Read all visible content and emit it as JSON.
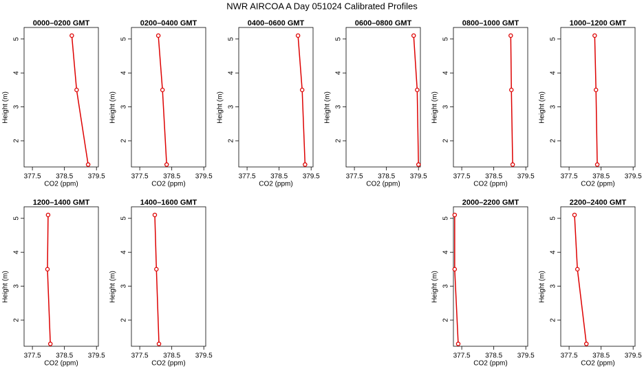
{
  "title": "NWR AIRCOA A  Day 051024  Calibrated Profiles",
  "chart_data": [
    {
      "type": "line",
      "title": "0000–0200 GMT",
      "x_label": "CO2 (ppm)",
      "y_label": "Height (m)",
      "xlim": [
        377.24,
        379.56
      ],
      "ylim": [
        1.23,
        5.34
      ],
      "xticks": [
        377.5,
        378.5,
        379.5
      ],
      "yticks": [
        2,
        3,
        4,
        5
      ],
      "series": [
        {
          "color": "#dd0000",
          "x": [
            379.24,
            378.88,
            378.73
          ],
          "values": [
            1.3,
            3.5,
            5.1
          ]
        }
      ]
    },
    {
      "type": "line",
      "title": "0200–0400 GMT",
      "x_label": "CO2 (ppm)",
      "y_label": "Height (m)",
      "xlim": [
        377.24,
        379.56
      ],
      "ylim": [
        1.23,
        5.34
      ],
      "xticks": [
        377.5,
        378.5,
        379.5
      ],
      "yticks": [
        2,
        3,
        4,
        5
      ],
      "series": [
        {
          "color": "#dd0000",
          "x": [
            378.34,
            378.21,
            378.08
          ],
          "values": [
            1.3,
            3.5,
            5.1
          ]
        }
      ]
    },
    {
      "type": "line",
      "title": "0400–0600 GMT",
      "x_label": "CO2 (ppm)",
      "y_label": "Height (m)",
      "xlim": [
        377.24,
        379.56
      ],
      "ylim": [
        1.23,
        5.34
      ],
      "xticks": [
        377.5,
        378.5,
        379.5
      ],
      "yticks": [
        2,
        3,
        4,
        5
      ],
      "series": [
        {
          "color": "#dd0000",
          "x": [
            379.31,
            379.22,
            379.09
          ],
          "values": [
            1.3,
            3.5,
            5.1
          ]
        }
      ]
    },
    {
      "type": "line",
      "title": "0600–0800 GMT",
      "x_label": "CO2 (ppm)",
      "y_label": "Height (m)",
      "xlim": [
        377.24,
        379.56
      ],
      "ylim": [
        1.23,
        5.34
      ],
      "xticks": [
        377.5,
        378.5,
        379.5
      ],
      "yticks": [
        2,
        3,
        4,
        5
      ],
      "series": [
        {
          "color": "#dd0000",
          "x": [
            379.5,
            379.46,
            379.35
          ],
          "values": [
            1.3,
            3.5,
            5.1
          ]
        }
      ]
    },
    {
      "type": "line",
      "title": "0800–1000 GMT",
      "x_label": "CO2 (ppm)",
      "y_label": "Height (m)",
      "xlim": [
        377.24,
        379.56
      ],
      "ylim": [
        1.23,
        5.34
      ],
      "xticks": [
        377.5,
        378.5,
        379.5
      ],
      "yticks": [
        2,
        3,
        4,
        5
      ],
      "series": [
        {
          "color": "#dd0000",
          "x": [
            379.09,
            379.05,
            379.03
          ],
          "values": [
            1.3,
            3.5,
            5.1
          ]
        }
      ]
    },
    {
      "type": "line",
      "title": "1000–1200 GMT",
      "x_label": "CO2 (ppm)",
      "y_label": "Height (m)",
      "xlim": [
        377.24,
        379.56
      ],
      "ylim": [
        1.23,
        5.34
      ],
      "xticks": [
        377.5,
        378.5,
        379.5
      ],
      "yticks": [
        2,
        3,
        4,
        5
      ],
      "series": [
        {
          "color": "#dd0000",
          "x": [
            378.38,
            378.34,
            378.3
          ],
          "values": [
            1.3,
            3.5,
            5.1
          ]
        }
      ]
    },
    {
      "type": "line",
      "title": "1200–1400 GMT",
      "x_label": "CO2 (ppm)",
      "y_label": "Height (m)",
      "xlim": [
        377.24,
        379.56
      ],
      "ylim": [
        1.23,
        5.34
      ],
      "xticks": [
        377.5,
        378.5,
        379.5
      ],
      "yticks": [
        2,
        3,
        4,
        5
      ],
      "series": [
        {
          "color": "#dd0000",
          "x": [
            378.06,
            377.97,
            377.99
          ],
          "values": [
            1.3,
            3.5,
            5.1
          ]
        }
      ]
    },
    {
      "type": "line",
      "title": "1400–1600 GMT",
      "x_label": "CO2 (ppm)",
      "y_label": "Height (m)",
      "xlim": [
        377.24,
        379.56
      ],
      "ylim": [
        1.23,
        5.34
      ],
      "xticks": [
        377.5,
        378.5,
        379.5
      ],
      "yticks": [
        2,
        3,
        4,
        5
      ],
      "series": [
        {
          "color": "#dd0000",
          "x": [
            378.1,
            378.02,
            377.97
          ],
          "values": [
            1.3,
            3.5,
            5.1
          ]
        }
      ]
    },
    {
      "type": "line",
      "title": "2000–2200 GMT",
      "x_label": "CO2 (ppm)",
      "y_label": "Height (m)",
      "xlim": [
        377.24,
        379.56
      ],
      "ylim": [
        1.23,
        5.34
      ],
      "xticks": [
        377.5,
        378.5,
        379.5
      ],
      "yticks": [
        2,
        3,
        4,
        5
      ],
      "series": [
        {
          "color": "#dd0000",
          "x": [
            377.39,
            377.28,
            377.28
          ],
          "values": [
            1.3,
            3.5,
            5.1
          ]
        }
      ]
    },
    {
      "type": "line",
      "title": "2200–2400 GMT",
      "x_label": "CO2 (ppm)",
      "y_label": "Height (m)",
      "xlim": [
        377.24,
        379.56
      ],
      "ylim": [
        1.23,
        5.34
      ],
      "xticks": [
        377.5,
        378.5,
        379.5
      ],
      "yticks": [
        2,
        3,
        4,
        5
      ],
      "series": [
        {
          "color": "#dd0000",
          "x": [
            378.04,
            377.76,
            377.67
          ],
          "values": [
            1.3,
            3.5,
            5.1
          ]
        }
      ]
    }
  ]
}
